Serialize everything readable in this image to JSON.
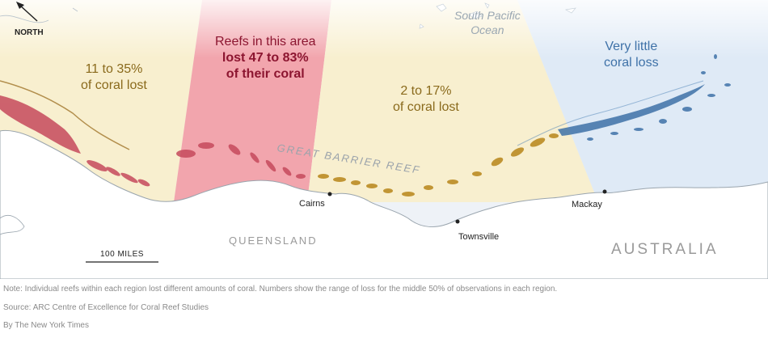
{
  "map": {
    "north_label": "NORTH",
    "ocean_label_line1": "South Pacific",
    "ocean_label_line2": "Ocean",
    "reef_label": "GREAT BARRIER REEF",
    "state_label": "QUEENSLAND",
    "country_label": "AUSTRALIA",
    "scale_label": "100 MILES",
    "cities": [
      "Cairns",
      "Townsville",
      "Mackay"
    ],
    "regions": [
      {
        "line1": "11 to 35%",
        "line2": "of coral lost",
        "color": "#8a6a1c"
      },
      {
        "line0": "Reefs in this area",
        "line1": "lost 47 to 83%",
        "line2": "of their coral",
        "color": "#8c1530"
      },
      {
        "line1": "2 to 17%",
        "line2": "of coral lost",
        "color": "#8a6a1c"
      },
      {
        "line1": "Very little",
        "line2": "coral loss",
        "color": "#3f72a8"
      }
    ],
    "colors": {
      "severe_band": "#f2a5ad",
      "moderate_band": "#f8efcf",
      "low_band": "#dfeaf6",
      "ocean": "#eef2f7",
      "land": "#ffffff"
    }
  },
  "footer": {
    "note": "Note: Individual reefs within each region lost different amounts of coral. Numbers show the range of loss for the middle 50% of observations in each region.",
    "source": "Source: ARC Centre of Excellence for Coral Reef Studies",
    "byline": "By The New York Times"
  }
}
